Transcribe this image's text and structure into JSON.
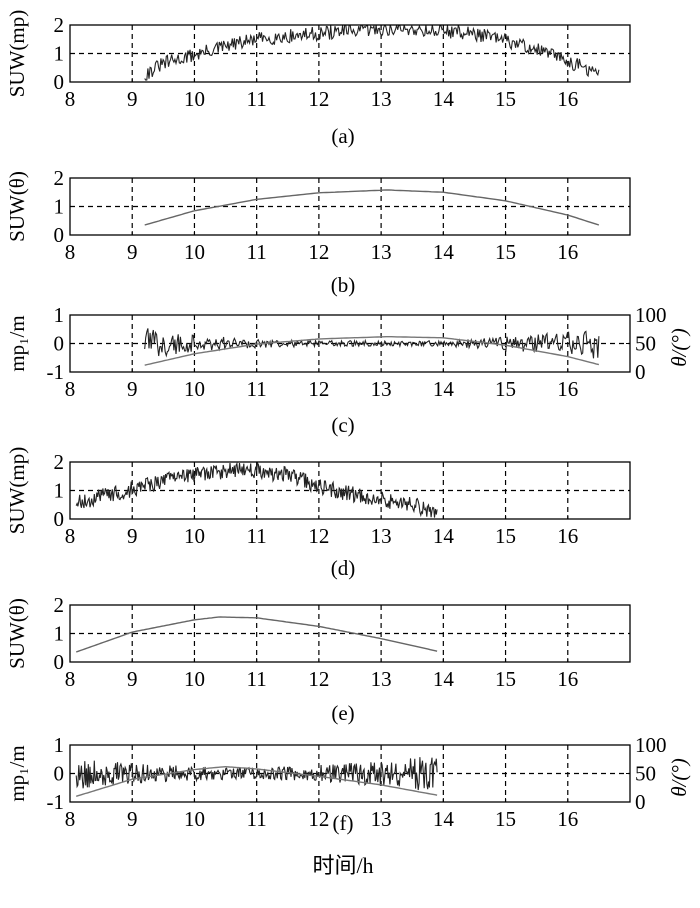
{
  "figure": {
    "xlabel": "时间/h"
  },
  "chart_data": [
    {
      "id": "a",
      "caption": "(a)",
      "type": "line",
      "ylabel": "SUW(mp)",
      "xlim": [
        8,
        17
      ],
      "ylim": [
        0,
        2
      ],
      "xticks": [
        8,
        9,
        10,
        11,
        12,
        13,
        14,
        15,
        16
      ],
      "yticks": [
        0,
        1,
        2
      ],
      "grid": true,
      "series": [
        {
          "kind": "noisy",
          "x_range": [
            9.2,
            16.5
          ],
          "points": [
            [
              9.2,
              0.3
            ],
            [
              9.5,
              0.7
            ],
            [
              10.0,
              1.0
            ],
            [
              10.5,
              1.3
            ],
            [
              11.0,
              1.55
            ],
            [
              11.5,
              1.65
            ],
            [
              12.0,
              1.75
            ],
            [
              12.5,
              1.85
            ],
            [
              13.0,
              1.9
            ],
            [
              13.5,
              1.9
            ],
            [
              14.0,
              1.85
            ],
            [
              14.5,
              1.75
            ],
            [
              15.0,
              1.5
            ],
            [
              15.5,
              1.2
            ],
            [
              16.0,
              0.8
            ],
            [
              16.5,
              0.3
            ]
          ],
          "noise": 0.25,
          "color": "#222222"
        }
      ]
    },
    {
      "id": "b",
      "caption": "(b)",
      "type": "line",
      "ylabel": "SUW(θ)",
      "xlim": [
        8,
        17
      ],
      "ylim": [
        0,
        2
      ],
      "xticks": [
        8,
        9,
        10,
        11,
        12,
        13,
        14,
        15,
        16
      ],
      "yticks": [
        0,
        1,
        2
      ],
      "grid": true,
      "series": [
        {
          "kind": "smooth",
          "points": [
            [
              9.2,
              0.35
            ],
            [
              10.0,
              0.85
            ],
            [
              11.0,
              1.25
            ],
            [
              12.0,
              1.48
            ],
            [
              13.1,
              1.58
            ],
            [
              14.0,
              1.5
            ],
            [
              15.0,
              1.2
            ],
            [
              16.0,
              0.7
            ],
            [
              16.5,
              0.35
            ]
          ],
          "color": "#666666"
        }
      ]
    },
    {
      "id": "c",
      "caption": "(c)",
      "type": "line",
      "ylabel": "mp₁/m",
      "y2label": "θ/(°)",
      "xlim": [
        8,
        17
      ],
      "ylim": [
        -1,
        1
      ],
      "y2lim": [
        0,
        100
      ],
      "xticks": [
        8,
        9,
        10,
        11,
        12,
        13,
        14,
        15,
        16
      ],
      "yticks": [
        -1,
        0,
        1
      ],
      "y2ticks": [
        0,
        50,
        100
      ],
      "grid": true,
      "series": [
        {
          "kind": "noisy_residual",
          "x_range": [
            9.2,
            16.5
          ],
          "points": [
            [
              9.2,
              0.0
            ],
            [
              16.5,
              0.0
            ]
          ],
          "envelope": [
            [
              9.2,
              0.55
            ],
            [
              10.0,
              0.3
            ],
            [
              11.0,
              0.15
            ],
            [
              12.0,
              0.1
            ],
            [
              13.0,
              0.1
            ],
            [
              14.0,
              0.1
            ],
            [
              15.0,
              0.25
            ],
            [
              16.0,
              0.4
            ],
            [
              16.5,
              0.55
            ]
          ],
          "color": "#222222"
        },
        {
          "kind": "smooth",
          "axis": "y2",
          "points": [
            [
              9.2,
              12
            ],
            [
              10.0,
              32
            ],
            [
              11.0,
              49
            ],
            [
              12.0,
              58
            ],
            [
              13.1,
              62
            ],
            [
              14.0,
              60
            ],
            [
              15.0,
              47
            ],
            [
              16.0,
              27
            ],
            [
              16.5,
              13
            ]
          ],
          "color": "#777777"
        }
      ]
    },
    {
      "id": "d",
      "caption": "(d)",
      "type": "line",
      "ylabel": "SUW(mp)",
      "xlim": [
        8,
        17
      ],
      "ylim": [
        0,
        2
      ],
      "xticks": [
        8,
        9,
        10,
        11,
        12,
        13,
        14,
        15,
        16
      ],
      "yticks": [
        0,
        1,
        2
      ],
      "grid": true,
      "series": [
        {
          "kind": "noisy",
          "x_range": [
            8.1,
            13.9
          ],
          "points": [
            [
              8.1,
              0.6
            ],
            [
              8.5,
              0.85
            ],
            [
              9.0,
              1.1
            ],
            [
              9.5,
              1.4
            ],
            [
              10.0,
              1.6
            ],
            [
              10.5,
              1.75
            ],
            [
              11.0,
              1.75
            ],
            [
              11.5,
              1.6
            ],
            [
              12.0,
              1.2
            ],
            [
              12.5,
              0.95
            ],
            [
              13.0,
              0.75
            ],
            [
              13.5,
              0.55
            ],
            [
              13.9,
              0.3
            ]
          ],
          "noise": 0.28,
          "color": "#222222"
        }
      ]
    },
    {
      "id": "e",
      "caption": "(e)",
      "type": "line",
      "ylabel": "SUW(θ)",
      "xlim": [
        8,
        17
      ],
      "ylim": [
        0,
        2
      ],
      "xticks": [
        8,
        9,
        10,
        11,
        12,
        13,
        14,
        15,
        16
      ],
      "yticks": [
        0,
        1,
        2
      ],
      "grid": true,
      "series": [
        {
          "kind": "smooth",
          "points": [
            [
              8.1,
              0.35
            ],
            [
              9.0,
              1.05
            ],
            [
              10.0,
              1.48
            ],
            [
              10.4,
              1.58
            ],
            [
              11.0,
              1.55
            ],
            [
              12.0,
              1.25
            ],
            [
              13.0,
              0.82
            ],
            [
              13.9,
              0.38
            ]
          ],
          "color": "#666666"
        }
      ]
    },
    {
      "id": "f",
      "caption": "(f)",
      "type": "line",
      "ylabel": "mp₁/m",
      "y2label": "θ/(°)",
      "xlim": [
        8,
        17
      ],
      "ylim": [
        -1,
        1
      ],
      "y2lim": [
        0,
        100
      ],
      "xticks": [
        8,
        9,
        10,
        11,
        12,
        13,
        14,
        15,
        16
      ],
      "yticks": [
        -1,
        0,
        1
      ],
      "y2ticks": [
        0,
        50,
        100
      ],
      "grid": true,
      "series": [
        {
          "kind": "noisy_residual",
          "x_range": [
            8.1,
            13.9
          ],
          "points": [
            [
              8.1,
              0.0
            ],
            [
              13.9,
              0.0
            ]
          ],
          "envelope": [
            [
              8.1,
              0.55
            ],
            [
              9.0,
              0.35
            ],
            [
              10.0,
              0.25
            ],
            [
              11.0,
              0.2
            ],
            [
              12.0,
              0.3
            ],
            [
              13.0,
              0.45
            ],
            [
              13.9,
              0.65
            ]
          ],
          "color": "#222222"
        },
        {
          "kind": "smooth",
          "axis": "y2",
          "points": [
            [
              8.1,
              10
            ],
            [
              9.0,
              40
            ],
            [
              10.0,
              57
            ],
            [
              10.5,
              62
            ],
            [
              11.0,
              58
            ],
            [
              12.0,
              45
            ],
            [
              13.0,
              30
            ],
            [
              13.9,
              12
            ]
          ],
          "color": "#777777"
        }
      ]
    }
  ]
}
